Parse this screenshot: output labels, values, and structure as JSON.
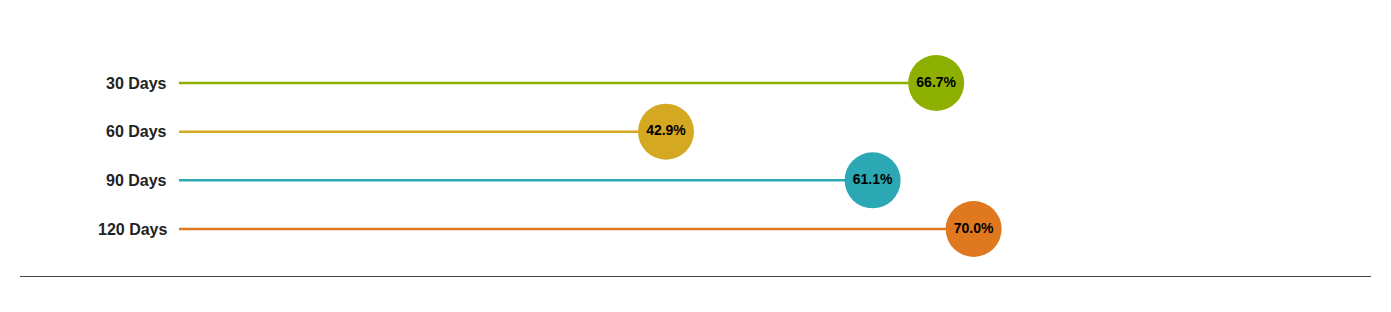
{
  "chart_data": {
    "type": "lollipop",
    "categories": [
      "30 Days",
      "60 Days",
      "90 Days",
      "120 Days"
    ],
    "values": [
      66.7,
      42.9,
      61.1,
      70.0
    ],
    "value_labels": [
      "66.7%",
      "42.9%",
      "61.1%",
      "70.0%"
    ],
    "colors": [
      "#8db000",
      "#d4a820",
      "#2ba8b4",
      "#e07820"
    ],
    "xlim": [
      -14,
      105
    ],
    "data_labels": true,
    "tick_labels": false,
    "grid": false
  }
}
